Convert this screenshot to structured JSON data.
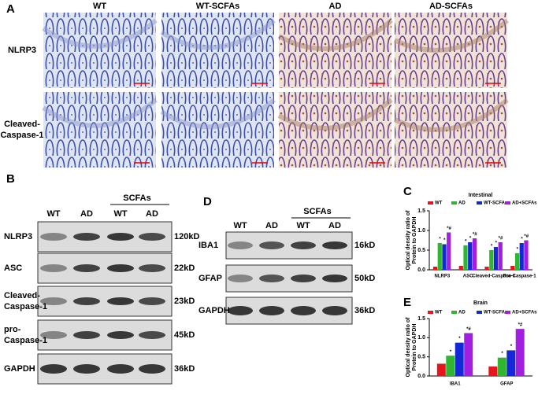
{
  "panels": {
    "a": "A",
    "b": "B",
    "c": "C",
    "d": "D",
    "e": "E"
  },
  "histology": {
    "columns": [
      "WT",
      "WT-SCFAs",
      "AD",
      "AD-SCFAs"
    ],
    "rows": [
      [
        "NLRP3"
      ],
      [
        "Cleaved-",
        "Caspase-1"
      ]
    ]
  },
  "blot_b": {
    "group": "SCFAs",
    "lanes": [
      "WT",
      "AD",
      "WT",
      "AD"
    ],
    "rows": [
      {
        "label": [
          "NLRP3"
        ],
        "size": "120kD"
      },
      {
        "label": [
          "ASC"
        ],
        "size": "22kD"
      },
      {
        "label": [
          "Cleaved-",
          "Caspase-1"
        ],
        "size": "23kD"
      },
      {
        "label": [
          "pro-",
          "Caspase-1"
        ],
        "size": "45kD"
      },
      {
        "label": [
          "GAPDH"
        ],
        "size": "36kD"
      }
    ]
  },
  "blot_d": {
    "group": "SCFAs",
    "lanes": [
      "WT",
      "AD",
      "WT",
      "AD"
    ],
    "rows": [
      {
        "label": [
          "IBA1"
        ],
        "size": "16kD"
      },
      {
        "label": [
          "GFAP"
        ],
        "size": "50kD"
      },
      {
        "label": [
          "GAPDH"
        ],
        "size": "36kD"
      }
    ]
  },
  "chart_data": [
    {
      "type": "bar",
      "title": "Intestinal",
      "y_label": [
        "Optical density ratio of",
        "Protein to GAPDH"
      ],
      "categories": [
        "NLRP3",
        "ASC",
        "Cleaved-Caspase-1",
        "Pro-Caspase-1"
      ],
      "series": [
        {
          "name": "WT",
          "color": "#e8141b",
          "values": [
            0.08,
            0.1,
            0.08,
            0.1
          ]
        },
        {
          "name": "AD",
          "color": "#2fb52f",
          "values": [
            0.68,
            0.62,
            0.5,
            0.42
          ],
          "sig": [
            "*",
            "*",
            "*",
            "*"
          ]
        },
        {
          "name": "WT-SCFAs",
          "color": "#1428d8",
          "values": [
            0.65,
            0.7,
            0.58,
            0.68
          ],
          "sig": [
            "*",
            "*",
            "*",
            "*"
          ]
        },
        {
          "name": "AD+SCFAs",
          "color": "#a21fe0",
          "values": [
            0.95,
            0.8,
            0.7,
            0.75
          ],
          "sig": [
            "*#",
            "*#",
            "*#",
            "*#"
          ]
        }
      ],
      "ylim": [
        0,
        1.5
      ],
      "yticks": [
        {
          "value": 0,
          "label": "0.0"
        },
        {
          "value": 0.5,
          "label": "0.5"
        },
        {
          "value": 1,
          "label": "1.0"
        },
        {
          "value": 1.5,
          "label": "1.5"
        }
      ]
    },
    {
      "type": "bar",
      "title": "Brain",
      "y_label": [
        "Optical density ratio of",
        "Protein to GAPDH"
      ],
      "categories": [
        "IBA1",
        "GFAP"
      ],
      "series": [
        {
          "name": "WT",
          "color": "#e8141b",
          "values": [
            0.32,
            0.25
          ]
        },
        {
          "name": "AD",
          "color": "#2fb52f",
          "values": [
            0.53,
            0.48
          ],
          "sig": [
            "*",
            "*"
          ]
        },
        {
          "name": "WT-SCFAs",
          "color": "#1428d8",
          "values": [
            0.87,
            0.67
          ],
          "sig": [
            "*",
            "*"
          ]
        },
        {
          "name": "AD+SCFAs",
          "color": "#a21fe0",
          "values": [
            1.12,
            1.23
          ],
          "sig": [
            "*#",
            "*#"
          ]
        }
      ],
      "ylim": [
        0,
        1.5
      ],
      "yticks": [
        {
          "value": 0,
          "label": "0.0"
        },
        {
          "value": 0.5,
          "label": "0.5"
        },
        {
          "value": 1,
          "label": "1.0"
        },
        {
          "value": 1.5,
          "label": "1.5"
        }
      ]
    }
  ]
}
